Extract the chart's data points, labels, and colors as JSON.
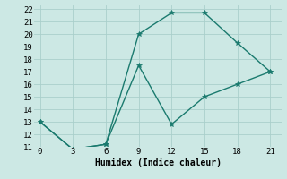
{
  "line1_x": [
    0,
    3,
    6,
    9,
    12,
    15,
    18,
    21
  ],
  "line1_y": [
    13.0,
    10.8,
    11.2,
    20.0,
    21.7,
    21.7,
    19.3,
    17.0
  ],
  "line2_x": [
    0,
    3,
    6,
    9,
    12,
    15,
    18,
    21
  ],
  "line2_y": [
    13.0,
    10.8,
    11.2,
    17.5,
    12.8,
    15.0,
    16.0,
    17.0
  ],
  "line_color": "#1a7a6e",
  "bg_color": "#cce8e4",
  "grid_color": "#aacfcb",
  "xlabel": "Humidex (Indice chaleur)",
  "xlim": [
    -0.5,
    22
  ],
  "ylim": [
    11,
    22.3
  ],
  "xticks": [
    0,
    3,
    6,
    9,
    12,
    15,
    18,
    21
  ],
  "yticks": [
    11,
    12,
    13,
    14,
    15,
    16,
    17,
    18,
    19,
    20,
    21,
    22
  ],
  "xlabel_fontsize": 7,
  "tick_fontsize": 6.5,
  "marker": "*",
  "marker_size": 4,
  "line_width": 1.0
}
